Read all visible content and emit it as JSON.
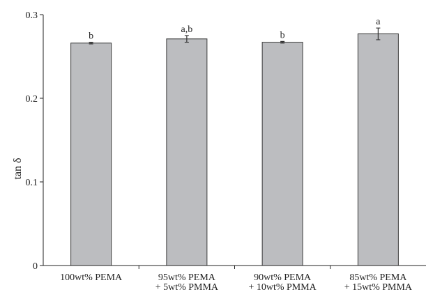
{
  "chart_data": {
    "type": "bar",
    "title": "",
    "xlabel": "",
    "ylabel": "tan δ",
    "ylim": [
      0,
      0.3
    ],
    "yticks": [
      "0",
      "0.1",
      "0.2",
      "0.3"
    ],
    "grid": false,
    "categories": [
      [
        "100wt% PEMA"
      ],
      [
        "95wt% PEMA",
        "+ 5wt% PMMA"
      ],
      [
        "90wt% PEMA",
        "+ 10wt% PMMA"
      ],
      [
        "85wt% PEMA",
        "+ 15wt% PMMA"
      ]
    ],
    "values": [
      0.266,
      0.271,
      0.267,
      0.277
    ],
    "error": [
      0.001,
      0.004,
      0.001,
      0.007
    ],
    "significance_labels": [
      "b",
      "a,b",
      "b",
      "a"
    ],
    "colors": {
      "bar": "#bcbdc0",
      "bar_edge": "#3a3a3a",
      "axis": "#222222"
    }
  }
}
